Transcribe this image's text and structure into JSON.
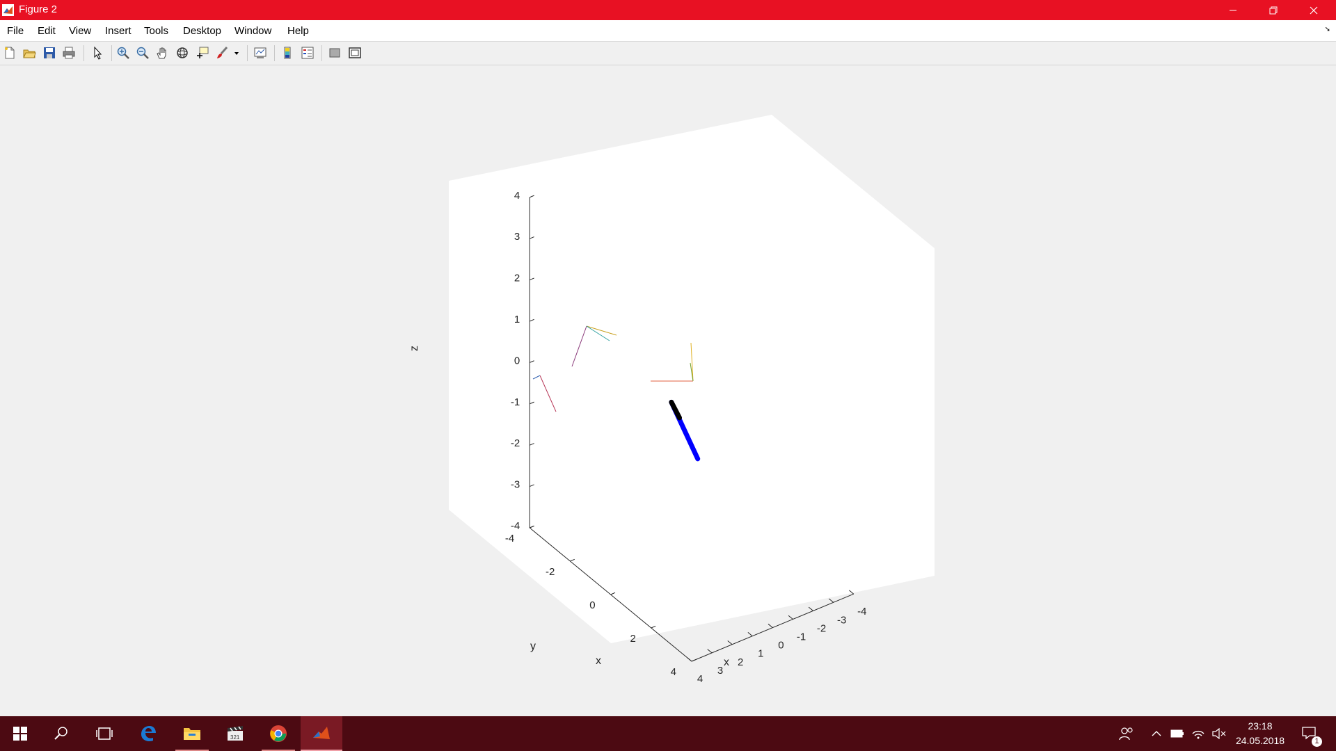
{
  "window": {
    "title": "Figure 2"
  },
  "menu": {
    "items": [
      "File",
      "Edit",
      "View",
      "Insert",
      "Tools",
      "Desktop",
      "Window",
      "Help"
    ]
  },
  "toolbar": {
    "icons": [
      "new-figure-icon",
      "open-file-icon",
      "save-icon",
      "print-icon",
      "edit-plot-arrow-icon",
      "zoom-in-icon",
      "zoom-out-icon",
      "pan-hand-icon",
      "rotate-3d-icon",
      "data-cursor-icon",
      "brush-icon",
      "brush-dropdown-icon",
      "link-plot-icon",
      "insert-colorbar-icon",
      "insert-legend-icon",
      "hide-plot-tools-icon",
      "show-plot-tools-icon"
    ]
  },
  "chart_data": {
    "type": "3d-line",
    "xlabel": "x",
    "ylabel": "y",
    "zlabel": "z",
    "xlim": [
      -4,
      4
    ],
    "ylim": [
      -4,
      4
    ],
    "zlim": [
      -4,
      4
    ],
    "x_ticks": [
      "-4",
      "-3",
      "-2",
      "-1",
      "0",
      "1",
      "2",
      "3",
      "4"
    ],
    "y_ticks": [
      "-4",
      "-2",
      "0",
      "2",
      "4"
    ],
    "z_ticks": [
      "4",
      "3",
      "2",
      "1",
      "0",
      "-1",
      "-2",
      "-3",
      "-4"
    ],
    "links": [
      {
        "color": "#0000ff",
        "from": [
          1.0,
          1.3,
          -0.8
        ],
        "to": [
          1.5,
          0.5,
          0.35
        ]
      },
      {
        "color": "#000000",
        "from": [
          1.5,
          0.5,
          0.35
        ],
        "to": [
          -0.2,
          -0.8,
          -0.9
        ]
      }
    ]
  },
  "taskbar": {
    "time": "23:18",
    "date": "24.05.2018",
    "notification_count": "1"
  },
  "colors": {
    "titlebar": "#e81123",
    "taskbar": "#4c0a12",
    "active_app": "#7a1a24"
  }
}
